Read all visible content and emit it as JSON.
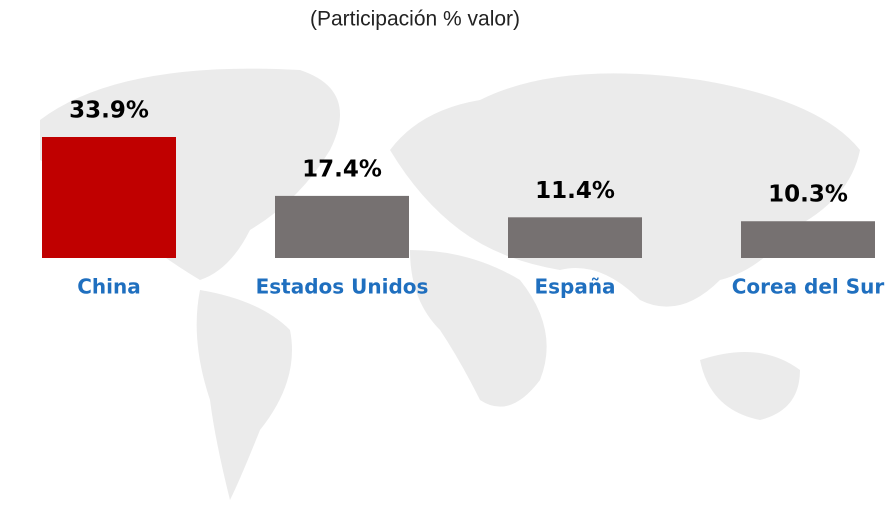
{
  "chart_data": {
    "type": "bar",
    "title": "(Participación % valor)",
    "categories": [
      "China",
      "Estados Unidos",
      "España",
      "Corea del Sur"
    ],
    "values": [
      33.9,
      17.4,
      11.4,
      10.3
    ],
    "value_labels": [
      "33.9%",
      "17.4%",
      "11.4%",
      "10.3%"
    ],
    "colors": [
      "#c00000",
      "#767171",
      "#767171",
      "#767171"
    ]
  }
}
